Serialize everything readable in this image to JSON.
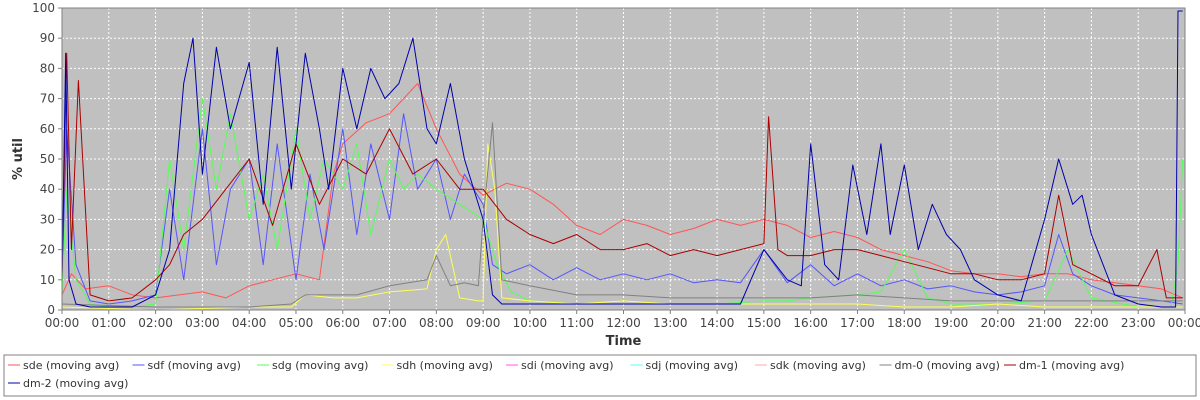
{
  "chart_data": {
    "type": "line",
    "title": "",
    "xlabel": "Time",
    "ylabel": "% util",
    "ylim": [
      0,
      100
    ],
    "yticks": [
      0,
      10,
      20,
      30,
      40,
      50,
      60,
      70,
      80,
      90,
      100
    ],
    "xlim": [
      0,
      24
    ],
    "xticks": [
      {
        "v": 0,
        "label": "00:00"
      },
      {
        "v": 1,
        "label": "01:00"
      },
      {
        "v": 2,
        "label": "02:00"
      },
      {
        "v": 3,
        "label": "03:00"
      },
      {
        "v": 4,
        "label": "04:00"
      },
      {
        "v": 5,
        "label": "05:00"
      },
      {
        "v": 6,
        "label": "06:00"
      },
      {
        "v": 7,
        "label": "07:00"
      },
      {
        "v": 8,
        "label": "08:00"
      },
      {
        "v": 9,
        "label": "09:00"
      },
      {
        "v": 10,
        "label": "10:00"
      },
      {
        "v": 11,
        "label": "11:00"
      },
      {
        "v": 12,
        "label": "12:00"
      },
      {
        "v": 13,
        "label": "13:00"
      },
      {
        "v": 14,
        "label": "14:00"
      },
      {
        "v": 15,
        "label": "15:00"
      },
      {
        "v": 16,
        "label": "16:00"
      },
      {
        "v": 17,
        "label": "17:00"
      },
      {
        "v": 18,
        "label": "18:00"
      },
      {
        "v": 19,
        "label": "19:00"
      },
      {
        "v": 20,
        "label": "20:00"
      },
      {
        "v": 21,
        "label": "21:00"
      },
      {
        "v": 22,
        "label": "22:00"
      },
      {
        "v": 23,
        "label": "23:00"
      },
      {
        "v": 24,
        "label": "00:00"
      }
    ],
    "grid": true,
    "plot_background": "#c0c0c0",
    "legend_position": "bottom",
    "series": [
      {
        "name": "sde (moving avg)",
        "color": "#ff5555",
        "x": [
          0.0,
          0.2,
          0.5,
          1.0,
          1.5,
          2.0,
          2.5,
          3.0,
          3.5,
          4.0,
          4.5,
          5.0,
          5.5,
          5.8,
          6.0,
          6.5,
          7.0,
          7.3,
          7.6,
          8.0,
          8.5,
          9.0,
          9.5,
          10.0,
          10.5,
          11.0,
          11.5,
          12.0,
          12.5,
          13.0,
          13.5,
          14.0,
          14.5,
          15.0,
          15.5,
          16.0,
          16.5,
          17.0,
          17.5,
          18.0,
          18.5,
          19.0,
          19.5,
          20.0,
          20.5,
          21.0,
          21.5,
          22.0,
          22.5,
          23.0,
          23.5,
          23.95
        ],
        "y": [
          5,
          12,
          7,
          8,
          5,
          4,
          5,
          6,
          4,
          8,
          10,
          12,
          10,
          45,
          55,
          62,
          65,
          70,
          75,
          60,
          45,
          38,
          42,
          40,
          35,
          28,
          25,
          30,
          28,
          25,
          27,
          30,
          28,
          30,
          28,
          24,
          26,
          24,
          20,
          18,
          16,
          13,
          12,
          12,
          11,
          12,
          12,
          10,
          9,
          8,
          7,
          4
        ]
      },
      {
        "name": "sdf (moving avg)",
        "color": "#5555ff",
        "x": [
          0.0,
          0.1,
          0.3,
          0.6,
          1.0,
          1.5,
          2.0,
          2.3,
          2.6,
          3.0,
          3.3,
          3.6,
          4.0,
          4.3,
          4.6,
          5.0,
          5.3,
          5.6,
          6.0,
          6.3,
          6.6,
          7.0,
          7.3,
          7.6,
          8.0,
          8.3,
          8.6,
          9.0,
          9.2,
          9.5,
          10.0,
          10.5,
          11.0,
          11.5,
          12.0,
          12.5,
          13.0,
          13.5,
          14.0,
          14.5,
          15.0,
          15.5,
          16.0,
          16.5,
          17.0,
          17.5,
          18.0,
          18.5,
          19.0,
          19.5,
          20.0,
          20.5,
          21.0,
          21.3,
          21.6,
          22.0,
          22.5,
          23.0,
          23.5,
          23.95
        ],
        "y": [
          10,
          60,
          15,
          3,
          2,
          3,
          5,
          40,
          10,
          60,
          15,
          40,
          50,
          15,
          55,
          10,
          45,
          20,
          60,
          25,
          55,
          30,
          65,
          40,
          50,
          30,
          45,
          35,
          15,
          12,
          15,
          10,
          14,
          10,
          12,
          10,
          12,
          9,
          10,
          9,
          20,
          9,
          15,
          8,
          12,
          8,
          10,
          7,
          8,
          6,
          5,
          6,
          8,
          25,
          12,
          8,
          5,
          4,
          3,
          2
        ]
      },
      {
        "name": "sdg (moving avg)",
        "color": "#55ff55",
        "x": [
          0.0,
          0.1,
          0.3,
          0.6,
          1.0,
          1.5,
          2.0,
          2.3,
          2.6,
          3.0,
          3.3,
          3.6,
          4.0,
          4.3,
          4.6,
          5.0,
          5.3,
          5.6,
          6.0,
          6.3,
          6.6,
          7.0,
          7.3,
          7.6,
          8.0,
          8.5,
          9.0,
          9.3,
          9.6,
          10.0,
          11.0,
          12.0,
          13.0,
          14.0,
          15.0,
          15.5,
          16.0,
          17.0,
          17.5,
          18.0,
          18.5,
          19.0,
          20.0,
          21.0,
          21.5,
          22.0,
          23.0,
          23.7,
          23.85,
          23.95
        ],
        "y": [
          5,
          40,
          10,
          2,
          1,
          1,
          2,
          50,
          20,
          70,
          40,
          65,
          30,
          45,
          20,
          60,
          30,
          50,
          40,
          55,
          25,
          50,
          40,
          45,
          40,
          35,
          30,
          15,
          6,
          3,
          2,
          2,
          2,
          2,
          3,
          3,
          4,
          5,
          6,
          20,
          4,
          2,
          2,
          3,
          20,
          4,
          1,
          1,
          15,
          50
        ]
      },
      {
        "name": "sdh (moving avg)",
        "color": "#ffff55",
        "x": [
          0.0,
          2.0,
          4.0,
          4.9,
          5.2,
          5.8,
          6.3,
          7.0,
          7.8,
          8.0,
          8.2,
          8.5,
          8.9,
          9.0,
          9.1,
          9.25,
          9.4,
          10.0,
          11.0,
          12.0,
          13.0,
          14.0,
          15.0,
          16.0,
          17.0,
          18.0,
          19.0,
          20.0,
          21.0,
          22.0,
          23.0,
          23.95
        ],
        "y": [
          1,
          0,
          1,
          1,
          5,
          4,
          4,
          6,
          7,
          20,
          25,
          4,
          3,
          3,
          55,
          40,
          4,
          3,
          2,
          3,
          2,
          2,
          2,
          2,
          2,
          1,
          1,
          2,
          1,
          1,
          1,
          1
        ]
      },
      {
        "name": "sdi (moving avg)",
        "color": "#ff55ff",
        "x": [
          0.0,
          23.95
        ],
        "y": [
          0,
          0
        ]
      },
      {
        "name": "sdj (moving avg)",
        "color": "#55ffff",
        "x": [
          0.0,
          23.95
        ],
        "y": [
          0,
          0
        ]
      },
      {
        "name": "sdk (moving avg)",
        "color": "#ffaaaa",
        "x": [
          0.0,
          23.95
        ],
        "y": [
          0,
          0
        ]
      },
      {
        "name": "dm-0 (moving avg)",
        "color": "#808080",
        "x": [
          0.0,
          2.0,
          4.0,
          4.9,
          5.2,
          5.8,
          6.3,
          7.0,
          7.8,
          8.0,
          8.3,
          8.6,
          8.9,
          9.0,
          9.2,
          9.4,
          10.0,
          11.0,
          12.0,
          13.0,
          14.0,
          15.0,
          16.0,
          17.0,
          18.0,
          19.0,
          20.0,
          21.0,
          22.0,
          23.0,
          23.95
        ],
        "y": [
          2,
          1,
          1,
          2,
          5,
          5,
          5,
          8,
          10,
          18,
          8,
          9,
          8,
          30,
          62,
          10,
          8,
          5,
          5,
          4,
          4,
          4,
          4,
          5,
          4,
          3,
          3,
          3,
          3,
          3,
          3
        ]
      },
      {
        "name": "dm-1 (moving avg)",
        "color": "#aa0000",
        "x": [
          0.0,
          0.1,
          0.2,
          0.35,
          0.6,
          1.0,
          1.5,
          2.0,
          2.3,
          2.6,
          3.0,
          3.5,
          4.0,
          4.5,
          5.0,
          5.5,
          6.0,
          6.5,
          7.0,
          7.5,
          8.0,
          8.5,
          9.0,
          9.5,
          10.0,
          10.5,
          11.0,
          11.5,
          12.0,
          12.5,
          13.0,
          13.5,
          14.0,
          14.5,
          15.0,
          15.1,
          15.3,
          15.5,
          16.0,
          16.5,
          17.0,
          17.5,
          18.0,
          18.5,
          19.0,
          19.5,
          20.0,
          20.5,
          21.0,
          21.3,
          21.6,
          22.0,
          22.5,
          23.0,
          23.4,
          23.6,
          23.95
        ],
        "y": [
          10,
          85,
          20,
          76,
          5,
          3,
          4,
          10,
          15,
          25,
          30,
          40,
          50,
          28,
          55,
          35,
          50,
          45,
          60,
          45,
          50,
          40,
          40,
          30,
          25,
          22,
          25,
          20,
          20,
          22,
          18,
          20,
          18,
          20,
          22,
          64,
          20,
          18,
          18,
          20,
          20,
          18,
          16,
          14,
          12,
          12,
          10,
          10,
          12,
          38,
          15,
          12,
          8,
          8,
          20,
          4,
          4
        ]
      },
      {
        "name": "dm-2 (moving avg)",
        "color": "#0000aa",
        "x": [
          0.0,
          0.08,
          0.15,
          0.3,
          0.6,
          1.0,
          1.5,
          2.0,
          2.3,
          2.6,
          2.8,
          3.0,
          3.3,
          3.6,
          4.0,
          4.3,
          4.6,
          4.9,
          5.2,
          5.5,
          5.7,
          6.0,
          6.3,
          6.6,
          6.9,
          7.2,
          7.5,
          7.8,
          8.0,
          8.3,
          8.6,
          9.0,
          9.2,
          9.4,
          10.0,
          11.0,
          12.0,
          13.0,
          14.0,
          14.5,
          15.0,
          15.5,
          15.8,
          16.0,
          16.3,
          16.6,
          16.9,
          17.2,
          17.5,
          17.7,
          18.0,
          18.3,
          18.6,
          18.9,
          19.2,
          19.5,
          20.0,
          20.5,
          21.0,
          21.3,
          21.6,
          21.8,
          22.0,
          22.5,
          23.0,
          23.5,
          23.8,
          23.85,
          23.95
        ],
        "y": [
          10,
          85,
          10,
          2,
          1,
          1,
          1,
          5,
          20,
          75,
          90,
          45,
          87,
          60,
          82,
          35,
          87,
          40,
          85,
          60,
          40,
          80,
          60,
          80,
          70,
          75,
          90,
          60,
          55,
          75,
          50,
          30,
          5,
          2,
          2,
          2,
          2,
          2,
          2,
          2,
          20,
          10,
          8,
          55,
          15,
          10,
          48,
          25,
          55,
          25,
          48,
          20,
          35,
          25,
          20,
          10,
          5,
          3,
          30,
          50,
          35,
          38,
          25,
          5,
          2,
          1,
          1,
          99,
          99
        ]
      }
    ]
  }
}
